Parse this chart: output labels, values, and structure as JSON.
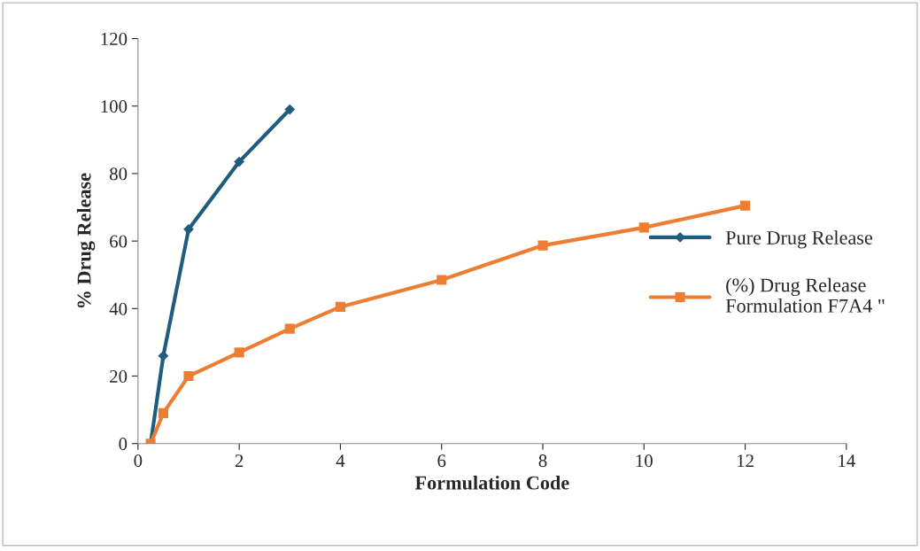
{
  "chart_data": {
    "type": "line",
    "xlabel": "Formulation Code",
    "ylabel": "% Drug Release",
    "series": [
      {
        "name": "Pure Drug Release",
        "color": "#1f5c7e",
        "marker": "diamond",
        "x": [
          0.25,
          0.5,
          1,
          2,
          3
        ],
        "values": [
          0,
          26,
          63.5,
          83.5,
          99
        ]
      },
      {
        "name": "(%) Drug Release\nFormulation F7A4 \"",
        "color": "#ed7d31",
        "marker": "square",
        "x": [
          0.25,
          0.5,
          1,
          2,
          3,
          4,
          6,
          8,
          10,
          12
        ],
        "values": [
          0,
          9,
          20,
          27,
          34,
          40.5,
          48.5,
          58.7,
          64,
          70.5
        ]
      }
    ],
    "xlim": [
      0,
      14
    ],
    "xticks": [
      0,
      2,
      4,
      6,
      8,
      10,
      12,
      14
    ],
    "ylim": [
      0,
      120
    ],
    "yticks": [
      0,
      20,
      40,
      60,
      80,
      100,
      120
    ],
    "grid": false,
    "legend": "right",
    "line_style": "solid"
  }
}
